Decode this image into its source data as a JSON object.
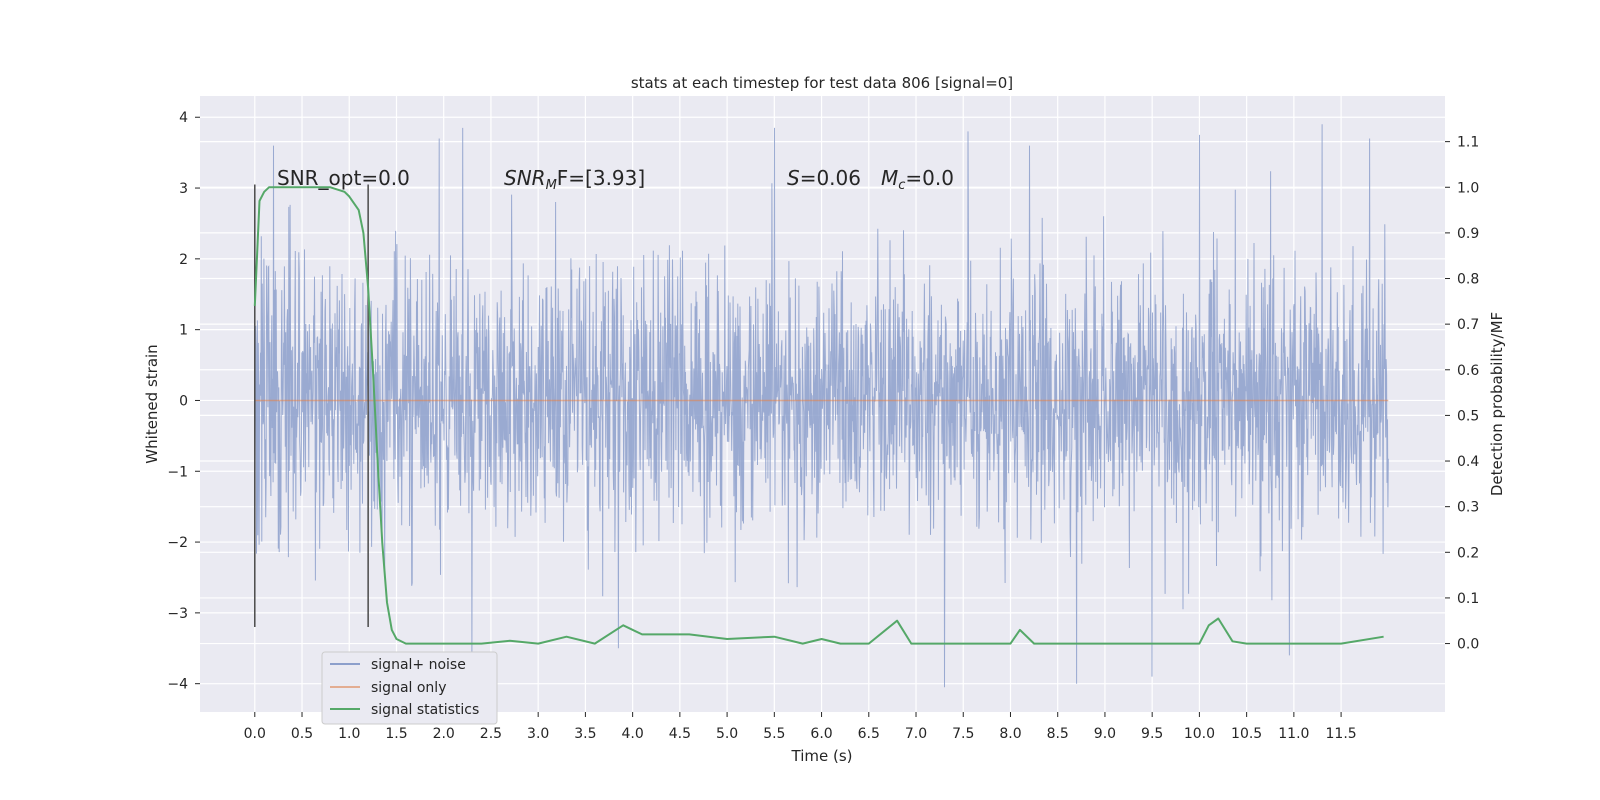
{
  "chart_data": {
    "type": "line",
    "title": "stats at each timestep for test data 806 [signal=0]",
    "xlabel": "Time (s)",
    "ylabel": "Whitened strain",
    "y2label": "Detection probability/MF",
    "xlim": [
      -0.58,
      12.6
    ],
    "ylim": [
      -4.4,
      4.3
    ],
    "y2lim": [
      -0.15,
      1.2
    ],
    "x_ticks": [
      "0.0",
      "0.5",
      "1.0",
      "1.5",
      "2.0",
      "2.5",
      "3.0",
      "3.5",
      "4.0",
      "4.5",
      "5.0",
      "5.5",
      "6.0",
      "6.5",
      "7.0",
      "7.5",
      "8.0",
      "8.5",
      "9.0",
      "9.5",
      "10.0",
      "10.5",
      "11.0",
      "11.5"
    ],
    "y_ticks": [
      "−4",
      "−3",
      "−2",
      "−1",
      "0",
      "1",
      "2",
      "3",
      "4"
    ],
    "y2_ticks": [
      "0.0",
      "0.1",
      "0.2",
      "0.3",
      "0.4",
      "0.5",
      "0.6",
      "0.7",
      "0.8",
      "0.9",
      "1.0",
      "1.1"
    ],
    "annotations": {
      "snr_opt": "SNR_opt=0.0",
      "snr_mf_prefix": "SNR",
      "snr_mf_sub": "M",
      "snr_mf_suffix": "F=[3.93]",
      "s_label": "S",
      "s_value": "=0.06",
      "mc_label": "M",
      "mc_sub": "c",
      "mc_value": "=0.0"
    },
    "window_markers_x": [
      0.0,
      1.2
    ],
    "legend": {
      "placement": "lower-left",
      "entries": [
        "signal+ noise",
        "signal only",
        "signal statistics"
      ]
    },
    "colors": {
      "signal_noise": "#8c9fcb",
      "signal_only": "#dd8452",
      "signal_statistics": "#55a868",
      "background": "#eaeaf2",
      "grid": "#ffffff",
      "marker": "#4a4a4a"
    },
    "series": [
      {
        "name": "signal+ noise",
        "axis": "left",
        "note_env": "dense noise, |y| mostly within 2.5, peaks near ±4",
        "x_range": [
          0.0,
          12.0
        ],
        "peaks": [
          {
            "x": 0.2,
            "y": 3.6
          },
          {
            "x": 1.95,
            "y": 3.7
          },
          {
            "x": 2.2,
            "y": 3.85
          },
          {
            "x": 5.5,
            "y": 3.85
          },
          {
            "x": 7.55,
            "y": 3.8
          },
          {
            "x": 8.2,
            "y": 3.6
          },
          {
            "x": 10.0,
            "y": 3.75
          },
          {
            "x": 11.3,
            "y": 3.9
          },
          {
            "x": 11.8,
            "y": 3.7
          },
          {
            "x": 2.3,
            "y": -3.6
          },
          {
            "x": 3.85,
            "y": -3.5
          },
          {
            "x": 7.3,
            "y": -4.05
          },
          {
            "x": 8.7,
            "y": -4.0
          },
          {
            "x": 9.5,
            "y": -3.9
          },
          {
            "x": 10.95,
            "y": -3.6
          }
        ]
      },
      {
        "name": "signal only",
        "axis": "left",
        "x": [
          0.0,
          12.0
        ],
        "y": [
          0.0,
          0.0
        ]
      },
      {
        "name": "signal statistics",
        "axis": "right",
        "x": [
          0.0,
          0.05,
          0.1,
          0.15,
          0.2,
          0.3,
          0.5,
          0.8,
          0.95,
          1.0,
          1.1,
          1.15,
          1.2,
          1.25,
          1.3,
          1.35,
          1.4,
          1.45,
          1.5,
          1.6,
          1.8,
          2.4,
          2.7,
          3.0,
          3.3,
          3.6,
          3.9,
          4.1,
          4.3,
          4.6,
          5.0,
          5.5,
          5.8,
          6.0,
          6.2,
          6.5,
          6.8,
          6.95,
          7.2,
          7.6,
          8.0,
          8.1,
          8.25,
          8.4,
          8.7,
          9.0,
          9.5,
          10.0,
          10.1,
          10.2,
          10.35,
          10.5,
          11.0,
          11.5,
          11.95
        ],
        "y": [
          0.74,
          0.97,
          0.99,
          1.0,
          1.0,
          1.0,
          1.0,
          1.0,
          0.99,
          0.98,
          0.95,
          0.9,
          0.78,
          0.6,
          0.4,
          0.22,
          0.09,
          0.03,
          0.01,
          0.0,
          0.0,
          0.0,
          0.006,
          0.0,
          0.015,
          0.0,
          0.04,
          0.02,
          0.02,
          0.02,
          0.01,
          0.015,
          0.0,
          0.01,
          0.0,
          0.0,
          0.05,
          0.0,
          0.0,
          0.0,
          0.0,
          0.03,
          0.0,
          0.0,
          0.0,
          0.0,
          0.0,
          0.0,
          0.04,
          0.055,
          0.005,
          0.0,
          0.0,
          0.0,
          0.015
        ]
      }
    ]
  }
}
